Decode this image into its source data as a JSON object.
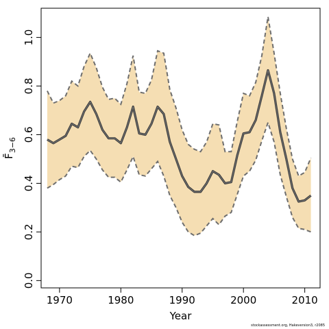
{
  "chart_data": {
    "type": "line",
    "xlabel": "Year",
    "ylabel": "F̄",
    "ylabel_sub": "3−6",
    "xlim": [
      1967,
      2012.5
    ],
    "ylim": [
      -0.03,
      1.12
    ],
    "x_ticks": [
      1970,
      1980,
      1990,
      2000,
      2010
    ],
    "y_ticks": [
      0.0,
      0.2,
      0.4,
      0.6,
      0.8,
      1.0
    ],
    "x_tick_labels": [
      "1970",
      "1980",
      "1990",
      "2000",
      "2010"
    ],
    "y_tick_labels": [
      "0.0",
      "0.2",
      "0.4",
      "0.6",
      "0.8",
      "1.0"
    ],
    "x": [
      1968,
      1969,
      1970,
      1971,
      1972,
      1973,
      1974,
      1975,
      1976,
      1977,
      1978,
      1979,
      1980,
      1981,
      1982,
      1983,
      1984,
      1985,
      1986,
      1987,
      1988,
      1989,
      1990,
      1991,
      1992,
      1993,
      1994,
      1995,
      1996,
      1997,
      1998,
      1999,
      2000,
      2001,
      2002,
      2003,
      2004,
      2005,
      2006,
      2007,
      2008,
      2009,
      2010,
      2011
    ],
    "series": [
      {
        "values": [
          0.58,
          0.565,
          0.58,
          0.595,
          0.645,
          0.63,
          0.695,
          0.735,
          0.685,
          0.62,
          0.585,
          0.585,
          0.565,
          0.63,
          0.715,
          0.605,
          0.6,
          0.645,
          0.715,
          0.685,
          0.57,
          0.5,
          0.43,
          0.385,
          0.365,
          0.365,
          0.4,
          0.45,
          0.435,
          0.4,
          0.405,
          0.515,
          0.605,
          0.61,
          0.66,
          0.76,
          0.865,
          0.77,
          0.61,
          0.5,
          0.38,
          0.325,
          0.33,
          0.35
        ],
        "color": "#3b3b3b"
      }
    ],
    "band_upper": [
      0.78,
      0.73,
      0.74,
      0.76,
      0.82,
      0.8,
      0.88,
      0.935,
      0.875,
      0.795,
      0.745,
      0.75,
      0.725,
      0.81,
      0.925,
      0.775,
      0.77,
      0.825,
      0.945,
      0.935,
      0.785,
      0.71,
      0.62,
      0.56,
      0.54,
      0.53,
      0.57,
      0.645,
      0.64,
      0.53,
      0.53,
      0.655,
      0.77,
      0.76,
      0.815,
      0.925,
      1.085,
      0.935,
      0.77,
      0.625,
      0.5,
      0.43,
      0.445,
      0.505
    ],
    "band_lower": [
      0.38,
      0.395,
      0.415,
      0.43,
      0.47,
      0.465,
      0.51,
      0.535,
      0.5,
      0.455,
      0.425,
      0.425,
      0.405,
      0.455,
      0.51,
      0.435,
      0.43,
      0.46,
      0.49,
      0.43,
      0.35,
      0.3,
      0.24,
      0.2,
      0.185,
      0.195,
      0.225,
      0.255,
      0.23,
      0.265,
      0.28,
      0.355,
      0.43,
      0.45,
      0.495,
      0.575,
      0.65,
      0.57,
      0.435,
      0.345,
      0.26,
      0.215,
      0.21,
      0.2
    ],
    "band_color": "#f5deb3",
    "band_edge_color": "#6e6e6e",
    "grid": false,
    "legend": "none",
    "footer_text": "stockassessment.org, Hakeversion3, r2085"
  }
}
